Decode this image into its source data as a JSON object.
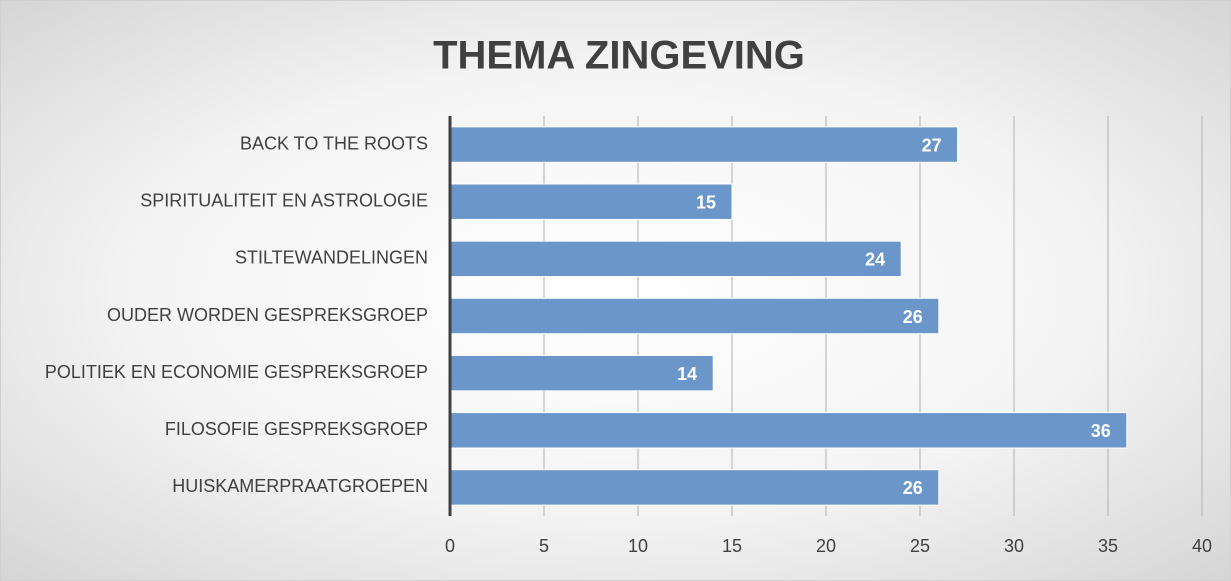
{
  "chart_data": {
    "type": "bar",
    "orientation": "horizontal",
    "title": "THEMA ZINGEVING",
    "categories": [
      "BACK TO THE ROOTS",
      "SPIRITUALITEIT EN ASTROLOGIE",
      "STILTEWANDELINGEN",
      "OUDER WORDEN GESPREKSGROEP",
      "POLITIEK EN ECONOMIE GESPREKSGROEP",
      "FILOSOFIE GESPREKSGROEP",
      "HUISKAMERPRAATGROEPEN"
    ],
    "values": [
      27,
      15,
      24,
      26,
      14,
      36,
      26
    ],
    "color": "#6a96c9",
    "xlim": [
      0,
      40
    ],
    "xticks": [
      0,
      5,
      10,
      15,
      20,
      25,
      30,
      35,
      40
    ],
    "grid": true
  }
}
